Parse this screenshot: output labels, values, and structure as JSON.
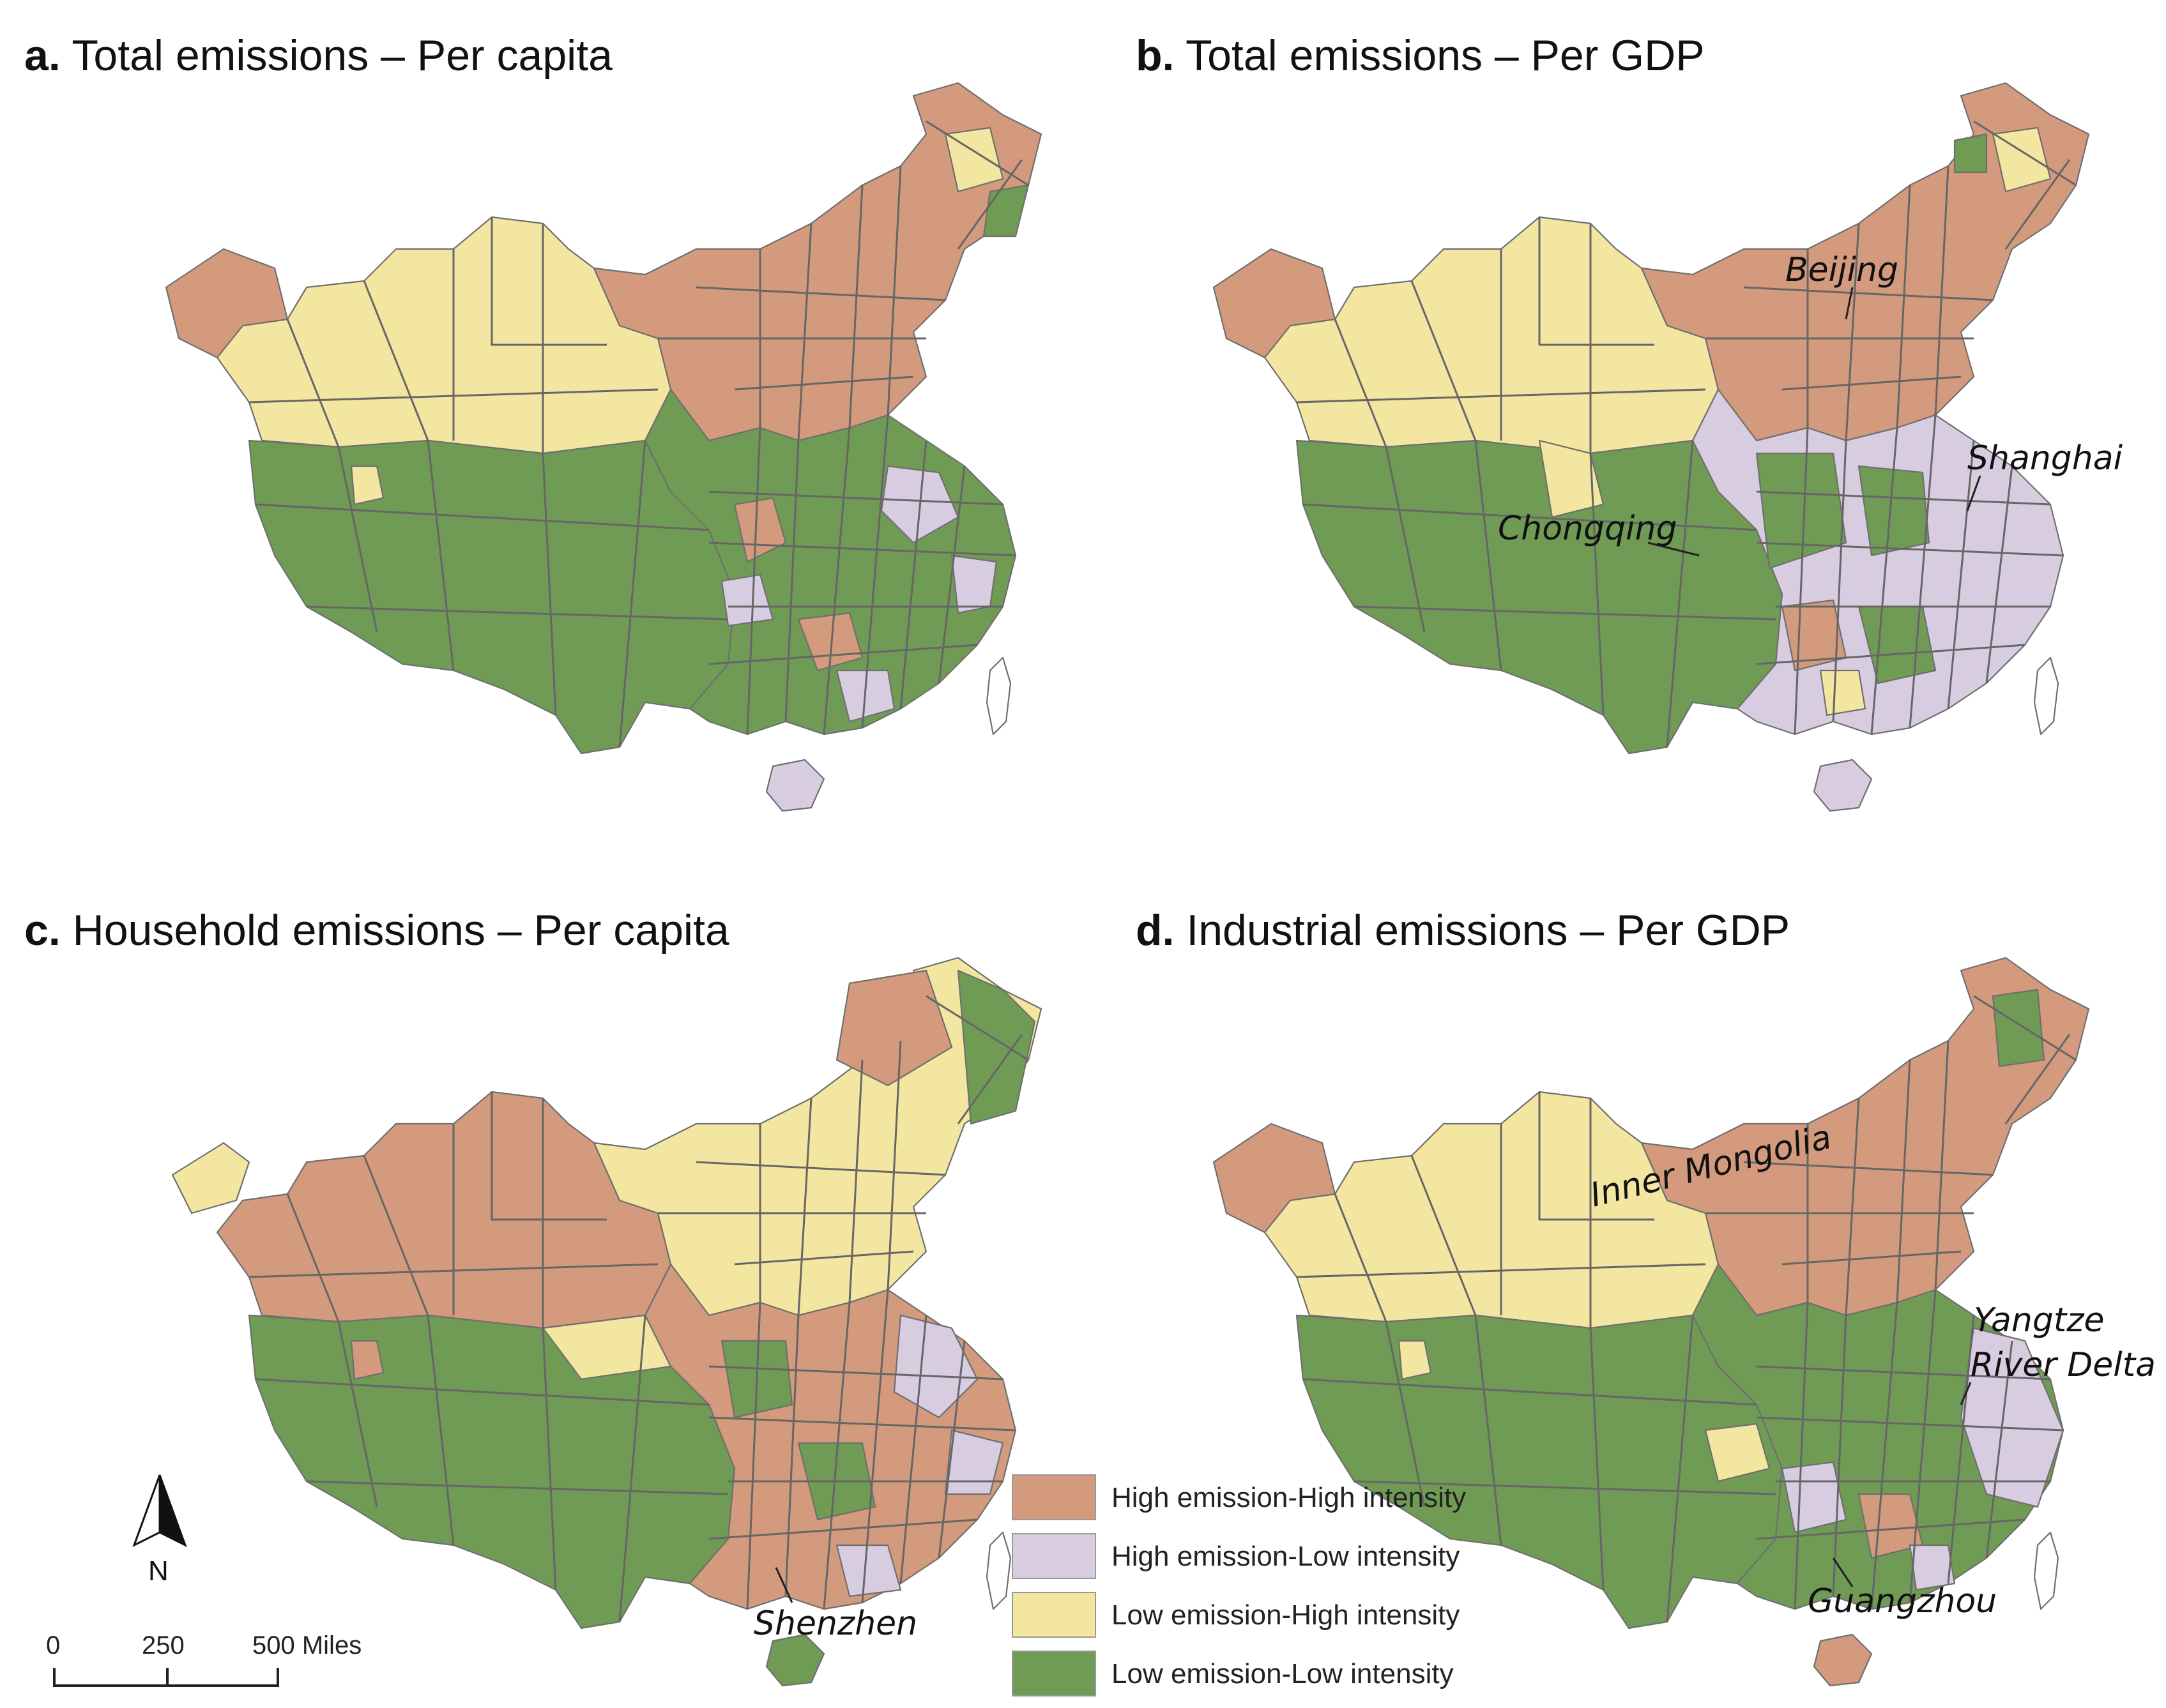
{
  "colors": {
    "high_high": "#d39a7d",
    "high_low": "#d8cde0",
    "low_high": "#f3e6a0",
    "low_low": "#6f9b55"
  },
  "panels": [
    {
      "letter": "a.",
      "title": "Total emissions – Per capita",
      "zones": [
        "low_high",
        "low_low",
        "high_high",
        "high_high"
      ],
      "annotations": []
    },
    {
      "letter": "b.",
      "title": "Total emissions – Per GDP",
      "zones": [
        "low_high",
        "low_low",
        "high_high",
        "mixed_east"
      ],
      "annotations": [
        "Beijing",
        "Shanghai",
        "Chongqing"
      ]
    },
    {
      "letter": "c.",
      "title": "Household emissions – Per capita",
      "zones": [
        "high_high",
        "low_low",
        "low_high",
        "high_high"
      ],
      "annotations": [
        "Shenzhen"
      ]
    },
    {
      "letter": "d.",
      "title": "Industrial emissions – Per GDP",
      "zones": [
        "low_high",
        "low_low",
        "high_high",
        "mixed_east"
      ],
      "annotations": [
        "Inner Mongolia",
        "Yangtze",
        "River Delta",
        "Guangzhou"
      ]
    }
  ],
  "legend": {
    "items": [
      {
        "label": "High emission-High intensity",
        "color_key": "high_high"
      },
      {
        "label": "High emission-Low intensity",
        "color_key": "high_low"
      },
      {
        "label": "Low emission-High intensity",
        "color_key": "low_high"
      },
      {
        "label": "Low emission-Low intensity",
        "color_key": "low_low"
      }
    ]
  },
  "north_arrow": {
    "label": "N"
  },
  "scale_bar": {
    "ticks": [
      "0",
      "250",
      "500 Miles"
    ]
  }
}
